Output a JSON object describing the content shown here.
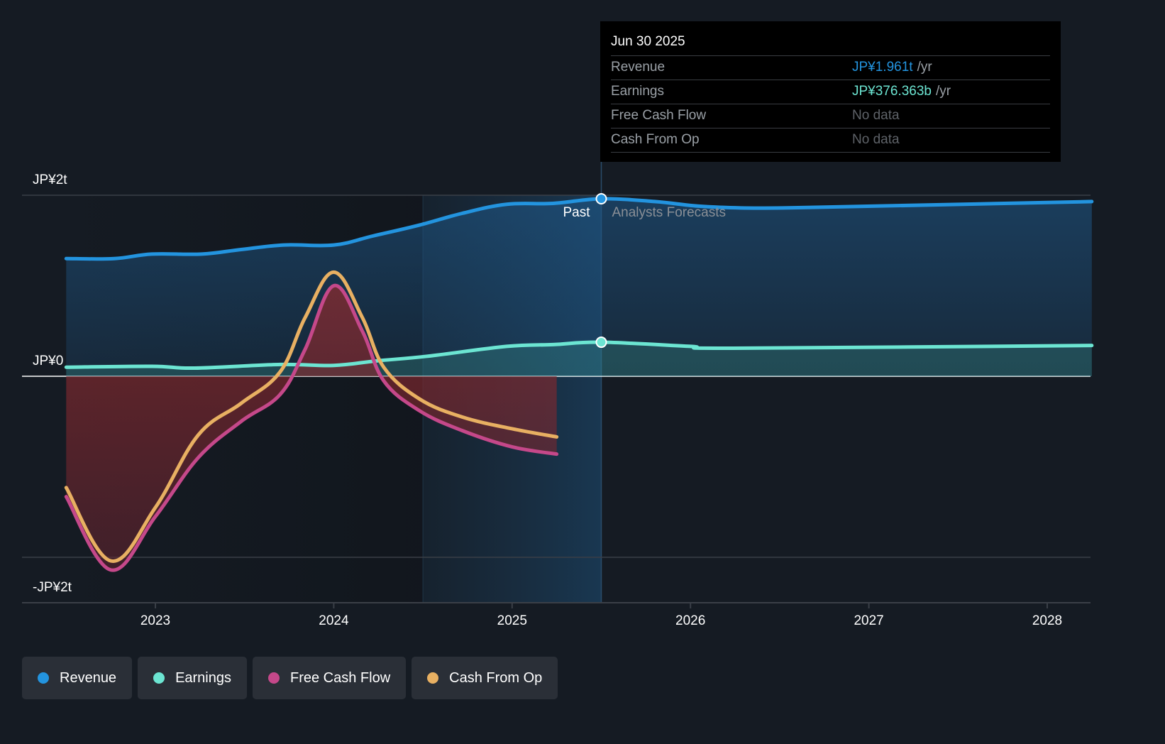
{
  "chart_data": {
    "type": "line",
    "title": "",
    "xlabel": "",
    "ylabel": "",
    "currency_unit": "JP¥ trillions",
    "ylim": [
      -2.5,
      2.25
    ],
    "y_ticks": [
      {
        "value": 2,
        "label": "JP¥2t"
      },
      {
        "value": 0,
        "label": "JP¥0"
      },
      {
        "value": -2,
        "label": "-JP¥2t"
      }
    ],
    "xlim": [
      2022.25,
      2028.25
    ],
    "x_ticks": [
      {
        "value": 2023,
        "label": "2023"
      },
      {
        "value": 2024,
        "label": "2024"
      },
      {
        "value": 2025,
        "label": "2025"
      },
      {
        "value": 2026,
        "label": "2026"
      },
      {
        "value": 2027,
        "label": "2027"
      },
      {
        "value": 2028,
        "label": "2028"
      }
    ],
    "past_forecast_divider": 2025.5,
    "highlight_band_start": 2024.5,
    "divider_labels": {
      "past": "Past",
      "forecast": "Analysts Forecasts"
    },
    "grid": true,
    "legend_position": "bottom-left",
    "series": [
      {
        "name": "Revenue",
        "color": "#2394df",
        "fill": true,
        "points": [
          [
            2022.5,
            1.3
          ],
          [
            2022.77,
            1.3
          ],
          [
            2022.98,
            1.35
          ],
          [
            2023.26,
            1.35
          ],
          [
            2023.48,
            1.4
          ],
          [
            2023.72,
            1.45
          ],
          [
            2024.0,
            1.45
          ],
          [
            2024.22,
            1.55
          ],
          [
            2024.48,
            1.67
          ],
          [
            2024.72,
            1.8
          ],
          [
            2024.97,
            1.9
          ],
          [
            2025.23,
            1.91
          ],
          [
            2025.5,
            1.961
          ],
          [
            2025.8,
            1.93
          ],
          [
            2026.04,
            1.88
          ],
          [
            2026.28,
            1.86
          ],
          [
            2026.52,
            1.86
          ],
          [
            2027.04,
            1.88
          ],
          [
            2028.25,
            1.93
          ]
        ]
      },
      {
        "name": "Earnings",
        "color": "#6ce5d2",
        "fill": true,
        "points": [
          [
            2022.5,
            0.1
          ],
          [
            2022.98,
            0.11
          ],
          [
            2023.22,
            0.09
          ],
          [
            2023.7,
            0.13
          ],
          [
            2024.0,
            0.12
          ],
          [
            2024.24,
            0.17
          ],
          [
            2024.52,
            0.22
          ],
          [
            2024.97,
            0.33
          ],
          [
            2025.23,
            0.35
          ],
          [
            2025.5,
            0.376
          ],
          [
            2026.0,
            0.33
          ],
          [
            2026.24,
            0.31
          ],
          [
            2028.25,
            0.34
          ]
        ]
      },
      {
        "name": "Free Cash Flow",
        "color": "#c5488a",
        "fill": true,
        "points": [
          [
            2022.5,
            -1.33
          ],
          [
            2022.75,
            -2.14
          ],
          [
            2023.0,
            -1.55
          ],
          [
            2023.24,
            -0.9
          ],
          [
            2023.48,
            -0.5
          ],
          [
            2023.7,
            -0.2
          ],
          [
            2023.84,
            0.3
          ],
          [
            2024.0,
            1.0
          ],
          [
            2024.16,
            0.5
          ],
          [
            2024.28,
            -0.05
          ],
          [
            2024.48,
            -0.38
          ],
          [
            2024.72,
            -0.6
          ],
          [
            2025.0,
            -0.78
          ],
          [
            2025.25,
            -0.86
          ]
        ]
      },
      {
        "name": "Cash From Op",
        "color": "#e8b062",
        "fill": false,
        "points": [
          [
            2022.5,
            -1.23
          ],
          [
            2022.75,
            -2.04
          ],
          [
            2023.0,
            -1.45
          ],
          [
            2023.24,
            -0.65
          ],
          [
            2023.48,
            -0.3
          ],
          [
            2023.7,
            0.05
          ],
          [
            2023.84,
            0.65
          ],
          [
            2024.0,
            1.15
          ],
          [
            2024.16,
            0.65
          ],
          [
            2024.28,
            0.1
          ],
          [
            2024.48,
            -0.25
          ],
          [
            2024.72,
            -0.45
          ],
          [
            2025.0,
            -0.58
          ],
          [
            2025.25,
            -0.67
          ]
        ]
      }
    ],
    "tooltip": {
      "date": "Jun 30 2025",
      "rows": [
        {
          "name": "Revenue",
          "value": "JP¥1.961t",
          "unit": "/yr",
          "color": "#2394df"
        },
        {
          "name": "Earnings",
          "value": "JP¥376.363b",
          "unit": "/yr",
          "color": "#6ce5d2"
        },
        {
          "name": "Free Cash Flow",
          "value": "No data",
          "unit": "",
          "color": ""
        },
        {
          "name": "Cash From Op",
          "value": "No data",
          "unit": "",
          "color": ""
        }
      ]
    }
  },
  "legend": [
    {
      "label": "Revenue",
      "color": "#2394df"
    },
    {
      "label": "Earnings",
      "color": "#6ce5d2"
    },
    {
      "label": "Free Cash Flow",
      "color": "#c5488a"
    },
    {
      "label": "Cash From Op",
      "color": "#e8b062"
    }
  ]
}
